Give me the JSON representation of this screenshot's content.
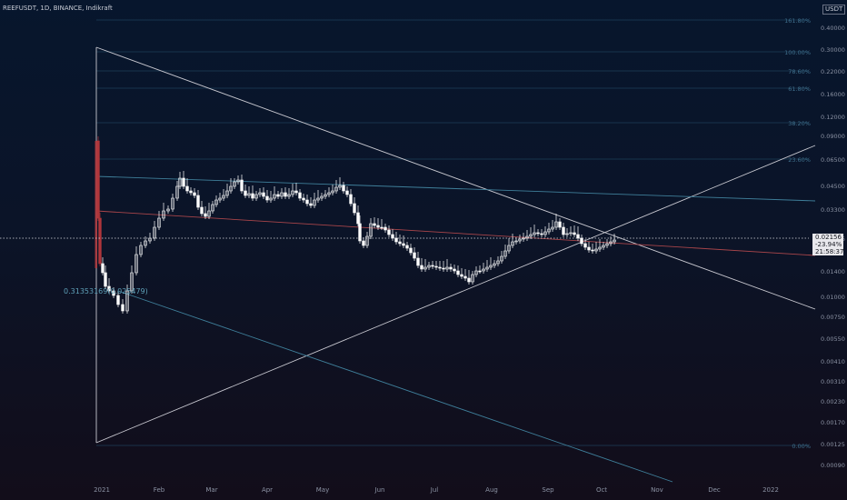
{
  "header": {
    "symbol": "REEFUSDT, 1D, BINANCE, Indikraft",
    "unit_badge": "USDT"
  },
  "price_badge": {
    "price": "0.02156",
    "change": "-23.94%",
    "countdown": "21:58:37"
  },
  "fib_anchor_label": "0.31353169(0.025479)",
  "colors": {
    "background": "#0b1428",
    "candle": "#ffffff",
    "red_candle": "#b0363b",
    "fib_line": "#1f4b66",
    "trend_line": "#c8c8d0",
    "red_channel": "#a8454a",
    "blue_channel": "#3f7f9a"
  },
  "chart_data": {
    "type": "candlestick",
    "x_axis_labels": [
      "2021",
      "Feb",
      "Mar",
      "Apr",
      "May",
      "Jun",
      "Jul",
      "Aug",
      "Sep",
      "Oct",
      "Nov",
      "Dec",
      "2022"
    ],
    "y_axis_scale": "log",
    "y_ticks": [
      "0.40000",
      "0.30000",
      "0.22000",
      "0.16000",
      "0.12000",
      "0.09000",
      "0.06500",
      "0.04500",
      "0.03300",
      "0.02156",
      "0.01400",
      "0.01000",
      "0.00750",
      "0.00550",
      "0.00410",
      "0.00310",
      "0.00230",
      "0.00170",
      "0.00125",
      "0.00090"
    ],
    "fib_levels": [
      "161.80%",
      "100.00%",
      "78.60%",
      "61.80%",
      "38.20%",
      "23.60%",
      "0.00%"
    ],
    "current_price": 0.02156,
    "ohlc_approx": [
      {
        "month": "2021",
        "close": 0.011
      },
      {
        "month": "Feb",
        "close": 0.045
      },
      {
        "month": "Mar",
        "close": 0.038
      },
      {
        "month": "Apr",
        "close": 0.042
      },
      {
        "month": "May",
        "close": 0.045
      },
      {
        "month": "Jun",
        "close": 0.023
      },
      {
        "month": "Jul",
        "close": 0.013
      },
      {
        "month": "Aug",
        "close": 0.021
      },
      {
        "month": "Sep",
        "close": 0.024
      },
      {
        "month": "Oct",
        "close": 0.0215
      }
    ]
  }
}
